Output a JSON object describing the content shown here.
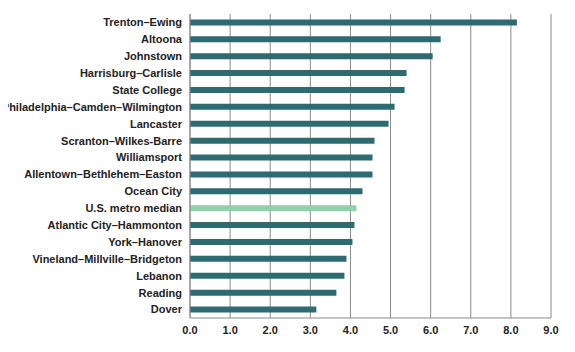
{
  "chart_data": {
    "type": "bar",
    "orientation": "horizontal",
    "categories": [
      "Trenton–Ewing",
      "Altoona",
      "Johnstown",
      "Harrisburg–Carlisle",
      "State College",
      "Philadelphia–Camden–Wilmington",
      "Lancaster",
      "Scranton–Wilkes-Barre",
      "Williamsport",
      "Allentown–Bethlehem–Easton",
      "Ocean City",
      "U.S. metro median",
      "Atlantic City–Hammonton",
      "York–Hanover",
      "Vineland–Millville–Bridgeton",
      "Lebanon",
      "Reading",
      "Dover"
    ],
    "values": [
      8.15,
      6.25,
      6.05,
      5.4,
      5.35,
      5.1,
      4.95,
      4.6,
      4.55,
      4.55,
      4.3,
      4.15,
      4.1,
      4.05,
      3.9,
      3.85,
      3.65,
      3.15
    ],
    "colors": [
      "#2e6a72",
      "#2e6a72",
      "#2e6a72",
      "#2e6a72",
      "#2e6a72",
      "#2e6a72",
      "#2e6a72",
      "#2e6a72",
      "#2e6a72",
      "#2e6a72",
      "#2e6a72",
      "#8fd1a8",
      "#2e6a72",
      "#2e6a72",
      "#2e6a72",
      "#2e6a72",
      "#2e6a72",
      "#2e6a72"
    ],
    "xlim": [
      0,
      9
    ],
    "xticks": [
      {
        "value": 0,
        "label": "0.0"
      },
      {
        "value": 1,
        "label": "1.0"
      },
      {
        "value": 2,
        "label": "2.0"
      },
      {
        "value": 3,
        "label": "3.0"
      },
      {
        "value": 4,
        "label": "4.0"
      },
      {
        "value": 5,
        "label": "5.0"
      },
      {
        "value": 6,
        "label": "6.0"
      },
      {
        "value": 7,
        "label": "7.0"
      },
      {
        "value": 8,
        "label": "8.0"
      },
      {
        "value": 9,
        "label": "9.0"
      }
    ],
    "grid": true
  }
}
